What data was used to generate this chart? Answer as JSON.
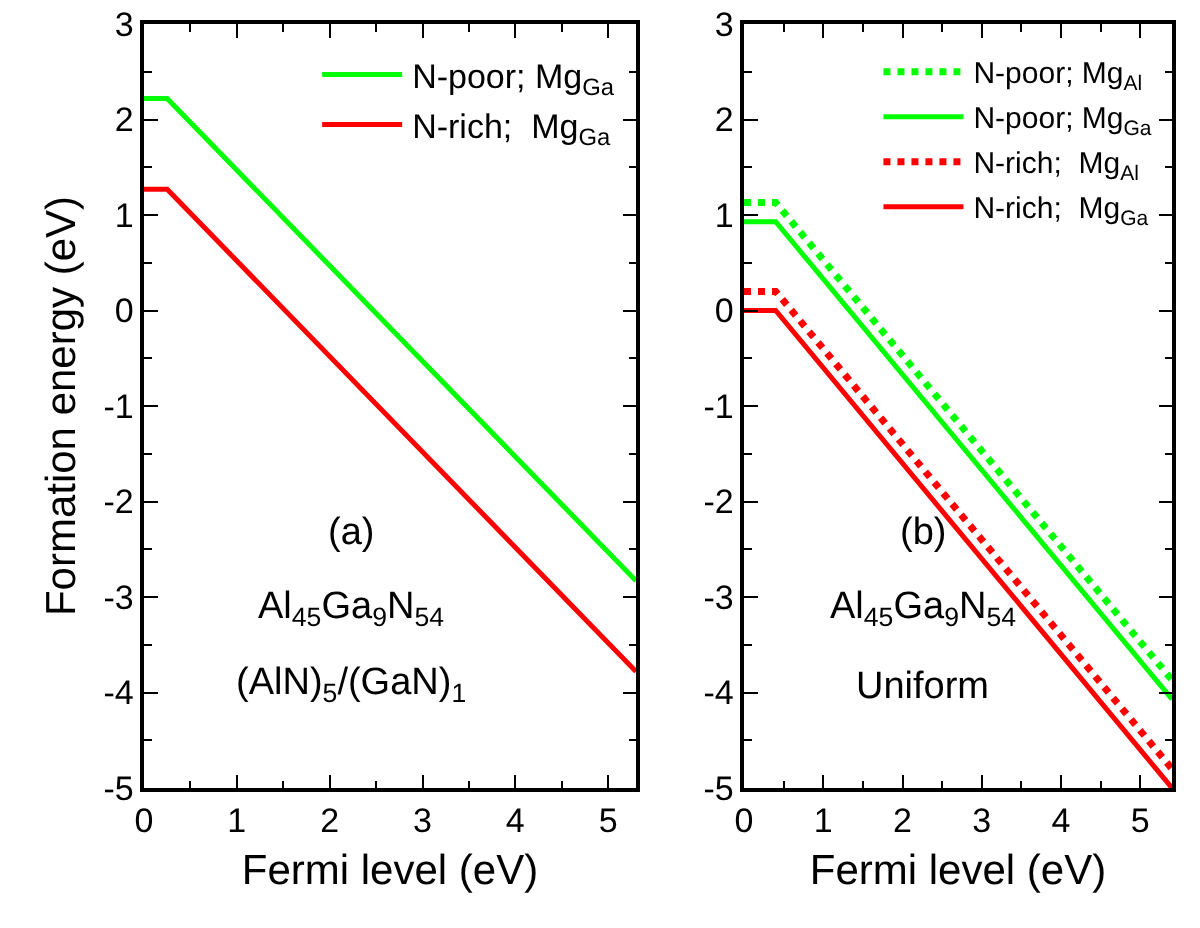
{
  "chart_data": [
    {
      "type": "line",
      "xlabel": "Fermi level (eV)",
      "ylabel": "Formation energy (eV)",
      "xlim": [
        0,
        5.3
      ],
      "ylim": [
        -5,
        3
      ],
      "xticks": [
        0,
        1,
        2,
        3,
        4,
        5
      ],
      "yticks": [
        -5,
        -4,
        -3,
        -2,
        -1,
        0,
        1,
        2,
        3
      ],
      "grid": false,
      "legend": "top right",
      "line_style": "solid",
      "annotations": [
        "(a)",
        "Al$_{45}$Ga$_{9}$N$_{54}$",
        "(AlN)$_{5}$/(GaN)$_{1}$"
      ],
      "series": [
        {
          "name": "N-poor; Mg$_{Ga}$",
          "color": "#00ff00",
          "x": [
            0,
            0.25,
            5.3
          ],
          "values": [
            2.22,
            2.22,
            -2.83
          ]
        },
        {
          "name": "N-rich;  Mg$_{Ga}$",
          "color": "#ff0000",
          "x": [
            0,
            0.25,
            5.3
          ],
          "values": [
            1.27,
            1.27,
            -3.78
          ]
        }
      ]
    },
    {
      "type": "line",
      "xlabel": "Fermi level (eV)",
      "xlim": [
        0,
        5.4
      ],
      "ylim": [
        -5,
        3
      ],
      "xticks": [
        0,
        1,
        2,
        3,
        4,
        5
      ],
      "yticks": [
        -5,
        -4,
        -3,
        -2,
        -1,
        0,
        1,
        2,
        3
      ],
      "grid": false,
      "legend": "top right",
      "annotations": [
        "(b)",
        "Al$_{45}$Ga$_{9}$N$_{54}$",
        "Uniform"
      ],
      "series": [
        {
          "name": "N-poor; Mg$_{Al}$",
          "color": "#00ff00",
          "line_style": "dotted",
          "x": [
            0,
            0.4,
            5.4
          ],
          "values": [
            1.13,
            1.13,
            -3.87
          ]
        },
        {
          "name": "N-poor; Mg$_{Ga}$",
          "color": "#00ff00",
          "line_style": "solid",
          "x": [
            0,
            0.4,
            5.4
          ],
          "values": [
            0.93,
            0.93,
            -4.07
          ]
        },
        {
          "name": "N-rich;  Mg$_{Al}$",
          "color": "#ff0000",
          "line_style": "dotted",
          "x": [
            0,
            0.4,
            5.4
          ],
          "values": [
            0.2,
            0.2,
            -4.8
          ]
        },
        {
          "name": "N-rich;  Mg$_{Ga}$",
          "color": "#ff0000",
          "line_style": "solid",
          "x": [
            0,
            0.4,
            5.4
          ],
          "values": [
            0,
            0,
            -5
          ]
        }
      ]
    }
  ]
}
